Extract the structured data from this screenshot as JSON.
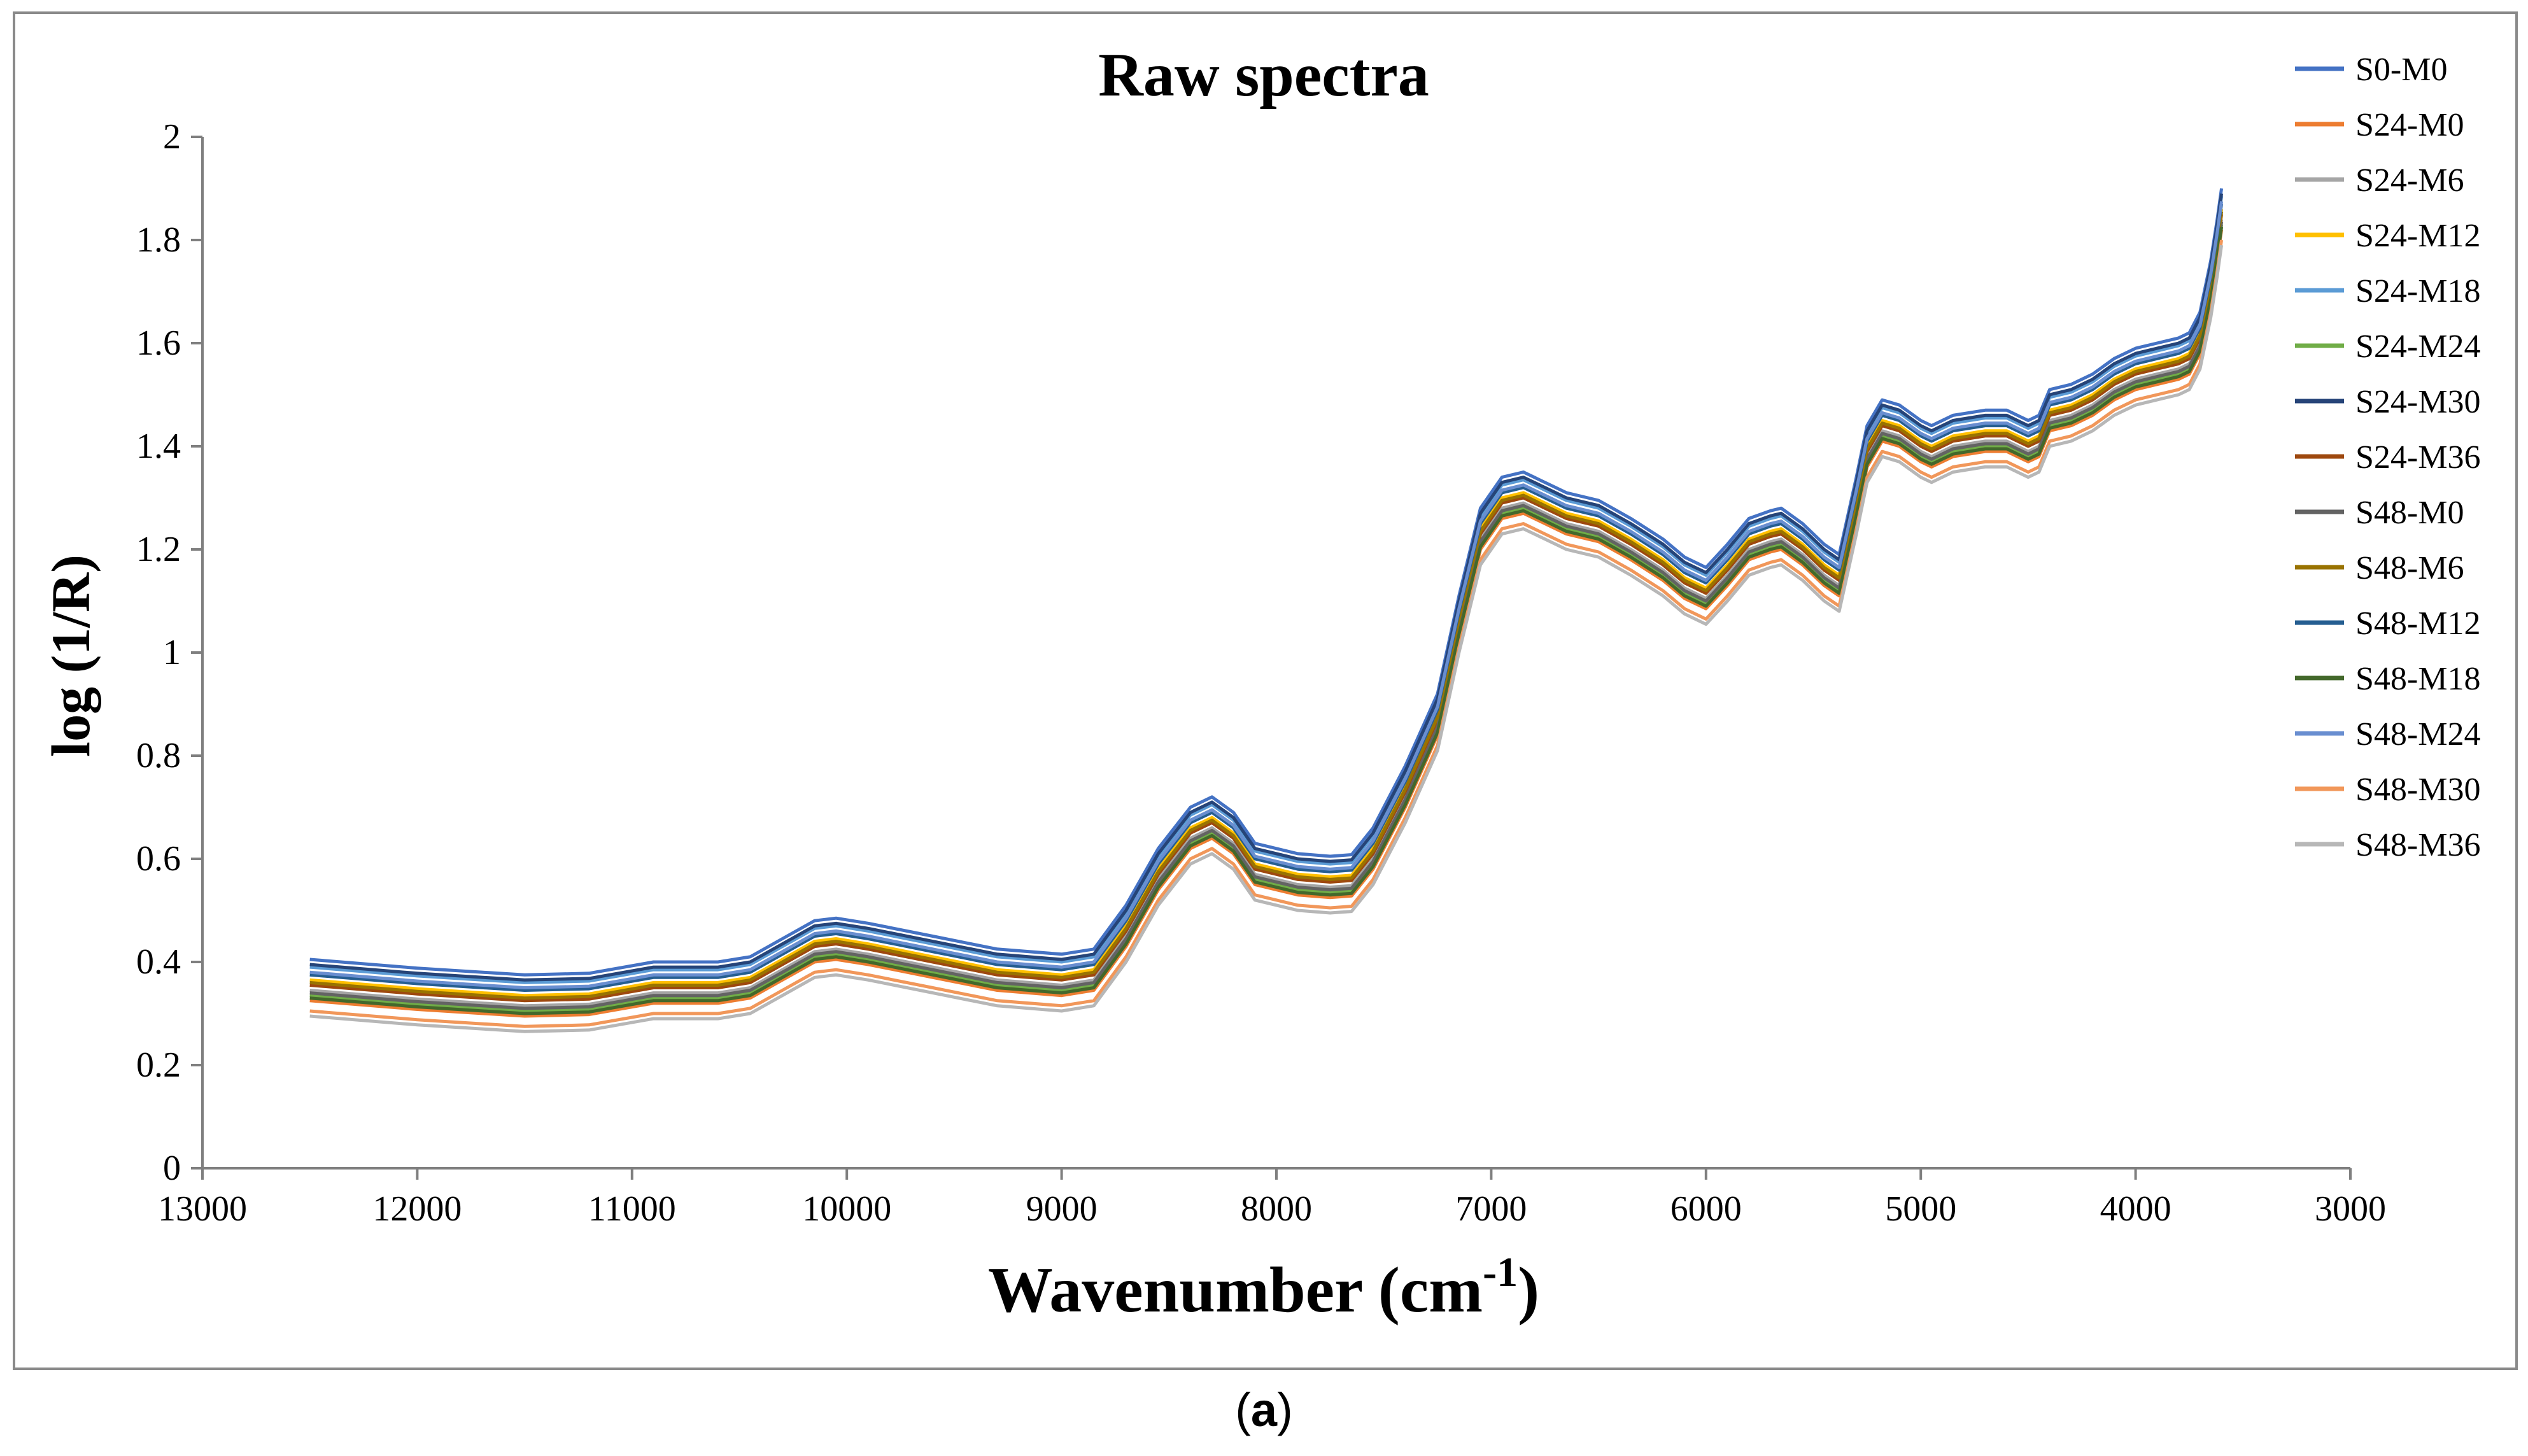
{
  "caption": {
    "open": "(",
    "letter": "a",
    "close": ")"
  },
  "chart_data": {
    "type": "line",
    "title": "Raw spectra",
    "xlabel": "Wavenumber (cm",
    "xlabel_sup": "-1",
    "xlabel_close": ")",
    "ylabel": "log (1/R)",
    "xlim": [
      13000,
      3000
    ],
    "ylim": [
      0,
      2
    ],
    "x_ticks": [
      "13000",
      "12000",
      "11000",
      "10000",
      "9000",
      "8000",
      "7000",
      "6000",
      "5000",
      "4000",
      "3000"
    ],
    "y_ticks": [
      "0",
      "0.2",
      "0.4",
      "0.6",
      "0.8",
      "1",
      "1.2",
      "1.4",
      "1.6",
      "1.8",
      "2"
    ],
    "base_curve": {
      "x": [
        12500,
        12000,
        11500,
        11200,
        10900,
        10600,
        10450,
        10300,
        10150,
        10050,
        9900,
        9600,
        9300,
        9000,
        8850,
        8700,
        8550,
        8400,
        8300,
        8200,
        8100,
        7900,
        7750,
        7650,
        7550,
        7400,
        7250,
        7150,
        7050,
        6950,
        6850,
        6750,
        6650,
        6500,
        6350,
        6200,
        6100,
        6000,
        5900,
        5800,
        5700,
        5650,
        5550,
        5450,
        5380,
        5300,
        5250,
        5180,
        5100,
        5000,
        4950,
        4850,
        4700,
        4600,
        4500,
        4450,
        4400,
        4300,
        4200,
        4100,
        4000,
        3900,
        3800,
        3750,
        3700,
        3650,
        3620,
        3600
      ],
      "y": [
        0.345,
        0.328,
        0.315,
        0.318,
        0.34,
        0.34,
        0.35,
        0.385,
        0.42,
        0.425,
        0.415,
        0.39,
        0.365,
        0.355,
        0.365,
        0.45,
        0.56,
        0.64,
        0.66,
        0.63,
        0.57,
        0.55,
        0.545,
        0.548,
        0.6,
        0.72,
        0.86,
        1.05,
        1.22,
        1.28,
        1.29,
        1.27,
        1.25,
        1.235,
        1.2,
        1.16,
        1.125,
        1.105,
        1.15,
        1.2,
        1.215,
        1.22,
        1.19,
        1.15,
        1.13,
        1.28,
        1.38,
        1.43,
        1.42,
        1.39,
        1.38,
        1.4,
        1.41,
        1.41,
        1.39,
        1.4,
        1.45,
        1.46,
        1.48,
        1.51,
        1.53,
        1.54,
        1.55,
        1.56,
        1.6,
        1.7,
        1.78,
        1.84
      ]
    },
    "series": [
      {
        "name": "S0-M0",
        "color": "#4472c4",
        "offset": 0.06
      },
      {
        "name": "S24-M0",
        "color": "#ed7d31",
        "offset": -0.02
      },
      {
        "name": "S24-M6",
        "color": "#a5a5a5",
        "offset": 0.0
      },
      {
        "name": "S24-M12",
        "color": "#ffc000",
        "offset": 0.02
      },
      {
        "name": "S24-M18",
        "color": "#5b9bd5",
        "offset": 0.045
      },
      {
        "name": "S24-M24",
        "color": "#70ad47",
        "offset": -0.01
      },
      {
        "name": "S24-M30",
        "color": "#264478",
        "offset": 0.05
      },
      {
        "name": "S24-M36",
        "color": "#9e480e",
        "offset": 0.01
      },
      {
        "name": "S48-M0",
        "color": "#636363",
        "offset": -0.005
      },
      {
        "name": "S48-M6",
        "color": "#997300",
        "offset": 0.015
      },
      {
        "name": "S48-M12",
        "color": "#255e91",
        "offset": 0.03
      },
      {
        "name": "S48-M18",
        "color": "#43682b",
        "offset": -0.015
      },
      {
        "name": "S48-M24",
        "color": "#698ed0",
        "offset": 0.035
      },
      {
        "name": "S48-M30",
        "color": "#f1975a",
        "offset": -0.04
      },
      {
        "name": "S48-M36",
        "color": "#b7b7b7",
        "offset": -0.05
      }
    ]
  }
}
